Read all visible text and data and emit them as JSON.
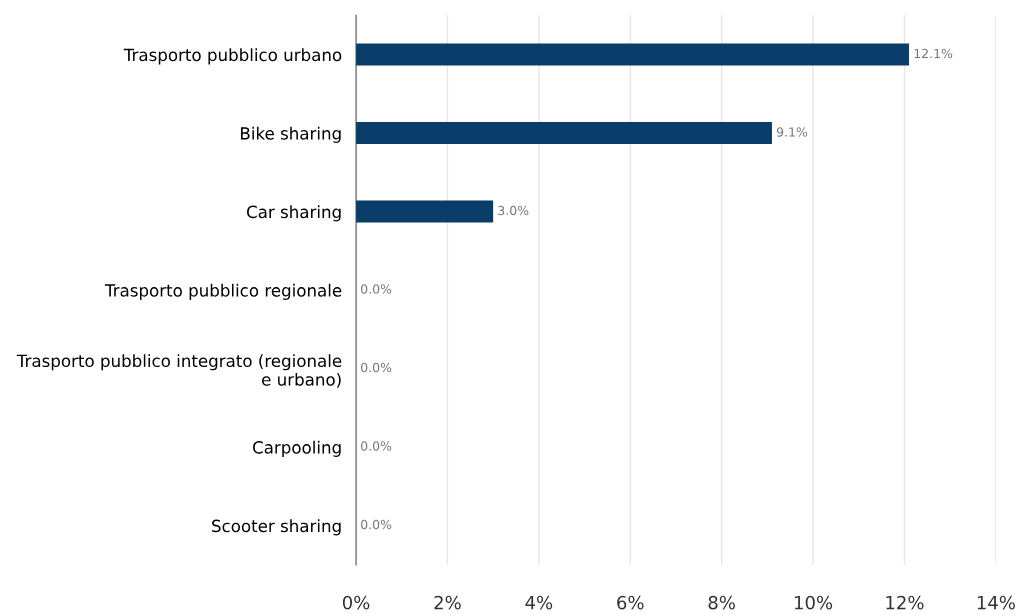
{
  "chart_data": {
    "type": "bar",
    "orientation": "horizontal",
    "categories": [
      "Trasporto pubblico urbano",
      "Bike sharing",
      "Car sharing",
      "Trasporto pubblico regionale",
      "Trasporto pubblico integrato (regionale\ne urbano)",
      "Carpooling",
      "Scooter sharing"
    ],
    "values": [
      12.1,
      9.1,
      3.0,
      0,
      0,
      0,
      0
    ],
    "value_labels": [
      "12.1%",
      "9.1%",
      "3.0%",
      "0.0%",
      "0.0%",
      "0.0%",
      "0.0%"
    ],
    "color": "#0b3d6b",
    "xlim": [
      0,
      14
    ],
    "xticks": [
      {
        "value": 0,
        "label": "0%"
      },
      {
        "value": 2,
        "label": "2%"
      },
      {
        "value": 4,
        "label": "4%"
      },
      {
        "value": 6,
        "label": "6%"
      },
      {
        "value": 8,
        "label": "8%"
      },
      {
        "value": 10,
        "label": "10%"
      },
      {
        "value": 12,
        "label": "12%"
      },
      {
        "value": 14,
        "label": "14%"
      }
    ],
    "grid": "x",
    "legend": false
  }
}
